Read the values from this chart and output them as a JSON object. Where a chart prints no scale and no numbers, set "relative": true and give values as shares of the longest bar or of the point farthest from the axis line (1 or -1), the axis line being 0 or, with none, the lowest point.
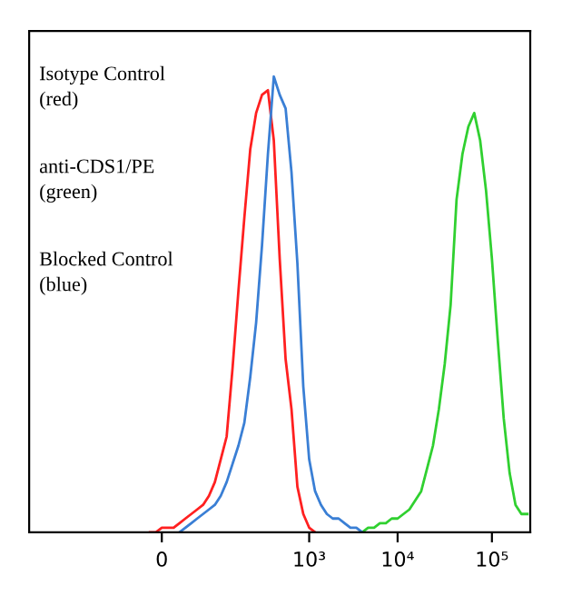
{
  "chart_data": {
    "type": "line",
    "relative": true,
    "annotations": [
      "Isotype Control\n(red)",
      "anti-CDS1/PE\n(green)",
      "Blocked Control\n(blue)"
    ],
    "categories": [
      null,
      null,
      null,
      null,
      null,
      null,
      null,
      null,
      null,
      null,
      null,
      null,
      null,
      null,
      null,
      null,
      null,
      null,
      null,
      null,
      null,
      null,
      "0",
      null,
      null,
      null,
      null,
      null,
      null,
      null,
      null,
      null,
      null,
      null,
      null,
      null,
      null,
      null,
      null,
      null,
      null,
      null,
      null,
      null,
      null,
      null,
      null,
      "10³",
      null,
      null,
      null,
      null,
      null,
      null,
      null,
      null,
      null,
      null,
      null,
      null,
      null,
      null,
      "10⁴",
      null,
      null,
      null,
      null,
      null,
      null,
      null,
      null,
      null,
      null,
      null,
      null,
      null,
      null,
      null,
      "10⁵",
      null,
      null,
      null,
      null,
      null,
      null
    ],
    "series": [
      {
        "color": "#ff2020",
        "values": [
          null,
          null,
          null,
          null,
          null,
          null,
          null,
          null,
          null,
          null,
          null,
          null,
          null,
          null,
          null,
          null,
          null,
          null,
          null,
          null,
          0,
          0,
          0.01,
          0.01,
          0.01,
          0.02,
          0.03,
          0.04,
          0.05,
          0.06,
          0.08,
          0.11,
          0.16,
          0.21,
          0.36,
          0.53,
          0.69,
          0.84,
          0.92,
          0.96,
          0.97,
          0.86,
          0.6,
          0.38,
          0.27,
          0.1,
          0.04,
          0.01,
          0,
          null,
          null,
          null,
          null,
          null,
          null,
          null,
          null,
          null,
          null,
          null,
          null,
          null,
          null,
          null,
          null,
          null,
          null,
          null,
          null,
          null,
          null,
          null,
          null,
          null,
          null,
          null,
          null,
          null,
          null,
          null,
          null,
          null,
          null,
          null,
          null
        ]
      },
      {
        "color": "#30d030",
        "values": [
          null,
          null,
          null,
          null,
          null,
          null,
          null,
          null,
          null,
          null,
          null,
          null,
          null,
          null,
          null,
          null,
          null,
          null,
          null,
          null,
          null,
          null,
          null,
          null,
          null,
          null,
          null,
          null,
          null,
          null,
          null,
          null,
          null,
          null,
          null,
          null,
          null,
          null,
          null,
          null,
          null,
          null,
          null,
          null,
          null,
          null,
          null,
          null,
          null,
          null,
          null,
          null,
          null,
          null,
          null,
          null,
          0,
          0.01,
          0.01,
          0.02,
          0.02,
          0.03,
          0.03,
          0.04,
          0.05,
          0.07,
          0.09,
          0.14,
          0.19,
          0.27,
          0.37,
          0.5,
          0.73,
          0.83,
          0.89,
          0.92,
          0.86,
          0.75,
          0.6,
          0.42,
          0.25,
          0.13,
          0.06,
          0.04,
          0.04
        ]
      },
      {
        "color": "#3a7fd5",
        "values": [
          null,
          null,
          null,
          null,
          null,
          null,
          null,
          null,
          null,
          null,
          null,
          null,
          null,
          null,
          null,
          null,
          null,
          null,
          null,
          null,
          null,
          null,
          null,
          null,
          null,
          0,
          0.01,
          0.02,
          0.03,
          0.04,
          0.05,
          0.06,
          0.08,
          0.11,
          0.15,
          0.19,
          0.24,
          0.34,
          0.46,
          0.63,
          0.83,
          1,
          0.96,
          0.93,
          0.79,
          0.59,
          0.32,
          0.16,
          0.09,
          0.06,
          0.04,
          0.03,
          0.03,
          0.02,
          0.01,
          0.01,
          0,
          null,
          null,
          null,
          null,
          null,
          null,
          null,
          null,
          null,
          null,
          null,
          null,
          null,
          null,
          null,
          null,
          null,
          null,
          null,
          null,
          null,
          null,
          null,
          null,
          null,
          null,
          null,
          null
        ]
      }
    ],
    "grid": false,
    "legend": false,
    "marker": "none",
    "line_style": "solid"
  }
}
